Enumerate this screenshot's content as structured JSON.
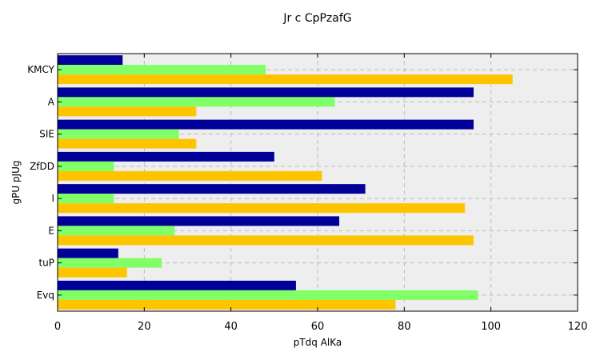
{
  "chart_data": {
    "type": "bar",
    "orientation": "horizontal",
    "title": "Jr c CpPzafG",
    "xlabel": "pTdq AlKa",
    "ylabel": "gPU pJUg",
    "categories": [
      "Evq",
      "tuP",
      "E",
      "I",
      "ZfDD",
      "SIE",
      "A",
      "KMCY"
    ],
    "series": [
      {
        "color": "#000099",
        "values": [
          55,
          14,
          65,
          71,
          50,
          96,
          96,
          15
        ]
      },
      {
        "color": "#80ff66",
        "values": [
          97,
          24,
          27,
          13,
          13,
          28,
          64,
          48
        ]
      },
      {
        "color": "#ffc400",
        "values": [
          78,
          16,
          96,
          94,
          61,
          32,
          32,
          105
        ]
      }
    ],
    "xlim": [
      0,
      120
    ],
    "xticks": [
      0,
      20,
      40,
      60,
      80,
      100,
      120
    ],
    "grid": true,
    "legend": "none",
    "colors": {
      "plot_background": "#eeeeee",
      "grid": "#bbbbbb"
    }
  }
}
